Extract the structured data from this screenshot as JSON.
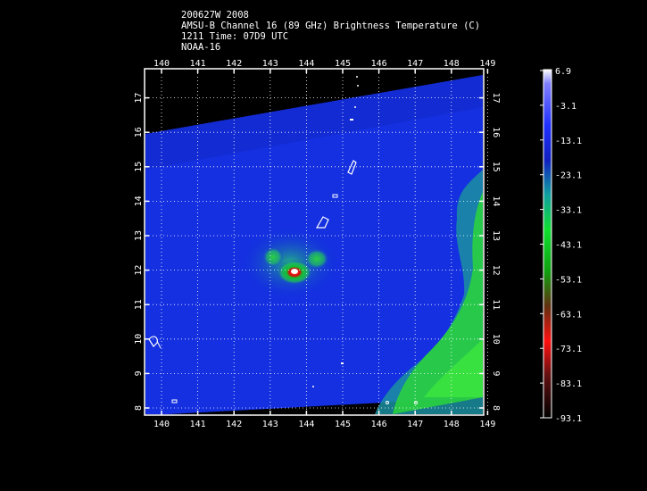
{
  "header": {
    "line1": "200627W 2008",
    "line2": "AMSU-B Channel 16 (89 GHz) Brightness Temperature (C)",
    "line3": "1211 Time: 07D9 UTC",
    "line4": "NOAA-16"
  },
  "map": {
    "lon_labels": [
      "140",
      "141",
      "142",
      "143",
      "144",
      "145",
      "146",
      "147",
      "148",
      "149"
    ],
    "lat_labels": [
      "8",
      "9",
      "10",
      "11",
      "12",
      "13",
      "14",
      "15",
      "16",
      "17"
    ]
  },
  "colorbar": {
    "labels": [
      "6.9",
      "-3.1",
      "-13.1",
      "-23.1",
      "-33.1",
      "-43.1",
      "-53.1",
      "-63.1",
      "-73.1",
      "-83.1",
      "-93.1"
    ]
  },
  "colors": {
    "background": "#000000",
    "swath_blue": "#1430e0",
    "storm_green": "#2ad040",
    "storm_core": "#cc1010"
  }
}
